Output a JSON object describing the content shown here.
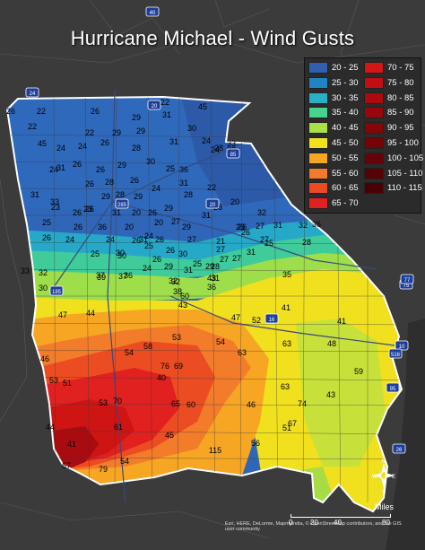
{
  "title": "Hurricane Michael - Wind Gusts",
  "legend": [
    {
      "label": "20 - 25",
      "color": "#2f5fae"
    },
    {
      "label": "25 - 30",
      "color": "#1f83c4"
    },
    {
      "label": "30 - 35",
      "color": "#28b0c4"
    },
    {
      "label": "35 - 40",
      "color": "#47d28e"
    },
    {
      "label": "40 - 45",
      "color": "#a8e046"
    },
    {
      "label": "45 - 50",
      "color": "#f2e21a"
    },
    {
      "label": "50 - 55",
      "color": "#f6a623"
    },
    {
      "label": "55 - 60",
      "color": "#f27a2a"
    },
    {
      "label": "60 - 65",
      "color": "#ec4a22"
    },
    {
      "label": "65 - 70",
      "color": "#e32020"
    },
    {
      "label": "70 - 75",
      "color": "#d51616"
    },
    {
      "label": "75 - 80",
      "color": "#c20e12"
    },
    {
      "label": "80 - 85",
      "color": "#ad0a0f"
    },
    {
      "label": "85 - 90",
      "color": "#99070c"
    },
    {
      "label": "90 - 95",
      "color": "#860509"
    },
    {
      "label": "95 - 100",
      "color": "#760407"
    },
    {
      "label": "100 - 105",
      "color": "#660306"
    },
    {
      "label": "105 - 110",
      "color": "#570204"
    },
    {
      "label": "110 - 115",
      "color": "#4a0103"
    }
  ],
  "gust_values": [
    "26",
    "22",
    "45",
    "22",
    "28",
    "24",
    "31",
    "22",
    "29",
    "31",
    "26",
    "29",
    "22",
    "29",
    "28",
    "26",
    "45",
    "24",
    "26",
    "26",
    "29",
    "30",
    "24",
    "28",
    "26",
    "26",
    "28",
    "29",
    "24",
    "31",
    "29",
    "25",
    "26",
    "20",
    "31",
    "33",
    "30",
    "24",
    "31",
    "23",
    "29",
    "36",
    "31",
    "25",
    "20",
    "26",
    "26",
    "36",
    "24",
    "23",
    "26",
    "26",
    "25",
    "31",
    "28",
    "22",
    "33",
    "24",
    "26",
    "26",
    "29",
    "24",
    "30",
    "25",
    "24",
    "29",
    "28",
    "20",
    "26",
    "26",
    "20",
    "27",
    "26",
    "31",
    "29",
    "32",
    "31",
    "32",
    "28",
    "36",
    "22",
    "24",
    "27",
    "21",
    "26",
    "27",
    "27",
    "27",
    "27",
    "25",
    "30",
    "28",
    "32",
    "31",
    "25",
    "29",
    "27",
    "31",
    "31",
    "33",
    "32",
    "36",
    "37",
    "37",
    "39",
    "30",
    "30",
    "38",
    "35",
    "60",
    "43",
    "36",
    "32",
    "43",
    "47",
    "52",
    "47",
    "41",
    "53",
    "58",
    "54",
    "54",
    "63",
    "48",
    "41",
    "53",
    "51",
    "63",
    "59",
    "40",
    "76",
    "69",
    "63",
    "44",
    "43",
    "46",
    "53",
    "70",
    "65",
    "60",
    "67",
    "44",
    "61",
    "74",
    "51",
    "45",
    "56",
    "46",
    "41",
    "115",
    "54",
    "67",
    "79",
    "69"
  ],
  "interstate_shields": [
    "40",
    "20",
    "24",
    "85",
    "285",
    "20",
    "16",
    "185",
    "75",
    "95",
    "10",
    "516",
    "77",
    "26"
  ],
  "scale_bar": {
    "unit": "Miles",
    "ticks": [
      "0",
      "20",
      "40",
      "80"
    ]
  },
  "compass": {
    "n": "N",
    "s": "S",
    "e": "E",
    "w": "W"
  },
  "credit_text": "Esri, HERE, DeLorme, MapmyIndia, © OpenStreetMap contributors, and the GIS user community",
  "bottom_credit": "Esri, HERE"
}
